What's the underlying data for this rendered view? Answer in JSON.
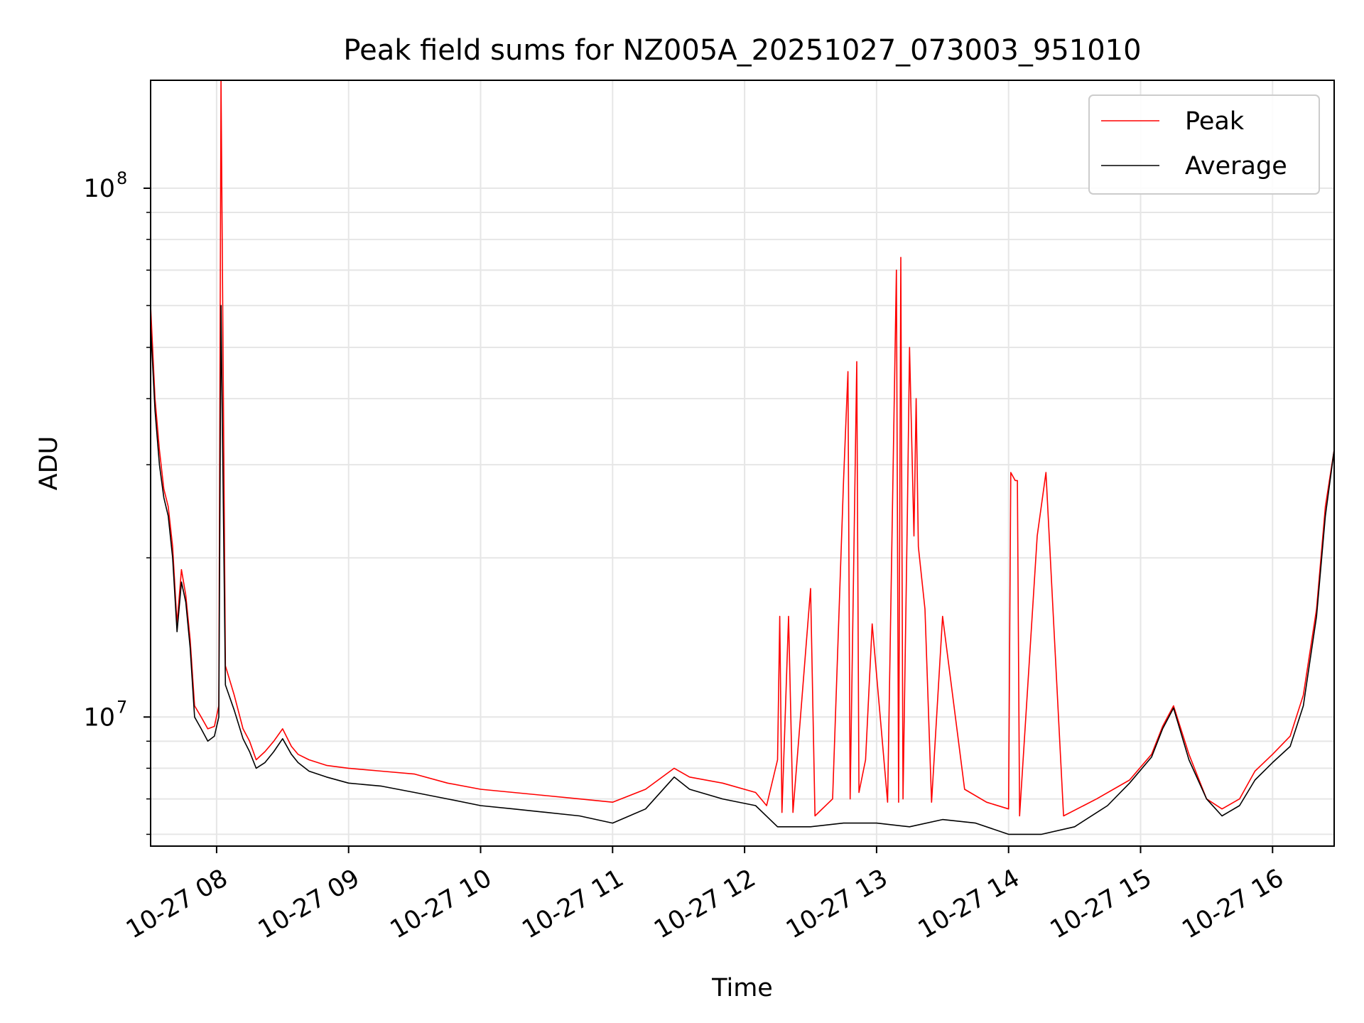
{
  "chart_data": {
    "type": "line",
    "title": "Peak field sums for NZ005A_20251027_073003_951010",
    "xlabel": "Time",
    "ylabel": "ADU",
    "yscale": "log",
    "ylim": [
      5700000,
      160000000
    ],
    "xlim": [
      "2025-10-27 07:30",
      "2025-10-27 16:28"
    ],
    "grid": true,
    "legend": {
      "placement": "top-right",
      "entries": [
        "Peak",
        "Average"
      ]
    },
    "x_ticks": [
      "10-27 08",
      "10-27 09",
      "10-27 10",
      "10-27 11",
      "10-27 12",
      "10-27 13",
      "10-27 14",
      "10-27 15",
      "10-27 16"
    ],
    "y_ticks": [
      {
        "value": 10000000,
        "base": "10",
        "exp": "7"
      },
      {
        "value": 100000000,
        "base": "10",
        "exp": "8"
      }
    ],
    "series": [
      {
        "name": "Peak",
        "color": "#ff0000",
        "x": [
          "2025-10-27 07:30",
          "2025-10-27 07:32",
          "2025-10-27 07:34",
          "2025-10-27 07:36",
          "2025-10-27 07:38",
          "2025-10-27 07:40",
          "2025-10-27 07:42",
          "2025-10-27 07:44",
          "2025-10-27 07:46",
          "2025-10-27 07:48",
          "2025-10-27 07:50",
          "2025-10-27 07:53",
          "2025-10-27 07:56",
          "2025-10-27 07:59",
          "2025-10-27 08:01",
          "2025-10-27 08:02",
          "2025-10-27 08:04",
          "2025-10-27 08:08",
          "2025-10-27 08:12",
          "2025-10-27 08:15",
          "2025-10-27 08:18",
          "2025-10-27 08:22",
          "2025-10-27 08:26",
          "2025-10-27 08:30",
          "2025-10-27 08:34",
          "2025-10-27 08:37",
          "2025-10-27 08:42",
          "2025-10-27 08:50",
          "2025-10-27 09:00",
          "2025-10-27 09:15",
          "2025-10-27 09:30",
          "2025-10-27 09:45",
          "2025-10-27 10:00",
          "2025-10-27 10:15",
          "2025-10-27 10:30",
          "2025-10-27 10:45",
          "2025-10-27 11:00",
          "2025-10-27 11:15",
          "2025-10-27 11:28",
          "2025-10-27 11:35",
          "2025-10-27 11:50",
          "2025-10-27 12:05",
          "2025-10-27 12:10",
          "2025-10-27 12:15",
          "2025-10-27 12:16",
          "2025-10-27 12:17",
          "2025-10-27 12:20",
          "2025-10-27 12:22",
          "2025-10-27 12:30",
          "2025-10-27 12:32",
          "2025-10-27 12:40",
          "2025-10-27 12:45",
          "2025-10-27 12:47",
          "2025-10-27 12:48",
          "2025-10-27 12:51",
          "2025-10-27 12:52",
          "2025-10-27 12:55",
          "2025-10-27 12:58",
          "2025-10-27 13:05",
          "2025-10-27 13:09",
          "2025-10-27 13:10",
          "2025-10-27 13:11",
          "2025-10-27 13:12",
          "2025-10-27 13:14",
          "2025-10-27 13:15",
          "2025-10-27 13:17",
          "2025-10-27 13:18",
          "2025-10-27 13:19",
          "2025-10-27 13:22",
          "2025-10-27 13:25",
          "2025-10-27 13:30",
          "2025-10-27 13:40",
          "2025-10-27 13:50",
          "2025-10-27 14:00",
          "2025-10-27 14:01",
          "2025-10-27 14:03",
          "2025-10-27 14:04",
          "2025-10-27 14:05",
          "2025-10-27 14:13",
          "2025-10-27 14:17",
          "2025-10-27 14:25",
          "2025-10-27 14:40",
          "2025-10-27 14:55",
          "2025-10-27 15:05",
          "2025-10-27 15:10",
          "2025-10-27 15:15",
          "2025-10-27 15:22",
          "2025-10-27 15:30",
          "2025-10-27 15:37",
          "2025-10-27 15:45",
          "2025-10-27 15:52",
          "2025-10-27 16:00",
          "2025-10-27 16:08",
          "2025-10-27 16:14",
          "2025-10-27 16:20",
          "2025-10-27 16:24",
          "2025-10-27 16:28"
        ],
        "y": [
          60000000,
          40000000,
          32000000,
          27000000,
          25000000,
          21000000,
          15000000,
          19000000,
          17000000,
          14000000,
          10500000,
          10000000,
          9500000,
          9600000,
          10500000,
          160000000,
          12500000,
          11000000,
          9500000,
          9000000,
          8300000,
          8600000,
          9000000,
          9500000,
          8800000,
          8500000,
          8300000,
          8100000,
          8000000,
          7900000,
          7800000,
          7500000,
          7300000,
          7200000,
          7100000,
          7000000,
          6900000,
          7300000,
          8000000,
          7700000,
          7500000,
          7200000,
          6800000,
          8300000,
          15500000,
          6600000,
          15500000,
          6600000,
          17500000,
          6500000,
          7000000,
          28000000,
          45000000,
          7000000,
          47000000,
          7200000,
          8300000,
          15000000,
          6900000,
          70000000,
          6900000,
          74000000,
          7000000,
          24000000,
          50000000,
          22000000,
          40000000,
          21000000,
          16000000,
          6900000,
          15500000,
          7300000,
          6900000,
          6700000,
          29000000,
          28000000,
          28000000,
          6500000,
          22000000,
          29000000,
          6500000,
          7000000,
          7600000,
          8500000,
          9600000,
          10500000,
          8500000,
          7000000,
          6700000,
          7000000,
          7900000,
          8500000,
          9200000,
          11000000,
          16000000,
          25000000,
          32000000
        ]
      },
      {
        "name": "Average",
        "color": "#000000",
        "x": [
          "2025-10-27 07:30",
          "2025-10-27 07:32",
          "2025-10-27 07:34",
          "2025-10-27 07:36",
          "2025-10-27 07:38",
          "2025-10-27 07:40",
          "2025-10-27 07:42",
          "2025-10-27 07:44",
          "2025-10-27 07:46",
          "2025-10-27 07:48",
          "2025-10-27 07:50",
          "2025-10-27 07:53",
          "2025-10-27 07:56",
          "2025-10-27 07:59",
          "2025-10-27 08:01",
          "2025-10-27 08:02",
          "2025-10-27 08:04",
          "2025-10-27 08:08",
          "2025-10-27 08:12",
          "2025-10-27 08:15",
          "2025-10-27 08:18",
          "2025-10-27 08:22",
          "2025-10-27 08:26",
          "2025-10-27 08:30",
          "2025-10-27 08:34",
          "2025-10-27 08:37",
          "2025-10-27 08:42",
          "2025-10-27 08:50",
          "2025-10-27 09:00",
          "2025-10-27 09:15",
          "2025-10-27 09:30",
          "2025-10-27 09:45",
          "2025-10-27 10:00",
          "2025-10-27 10:15",
          "2025-10-27 10:30",
          "2025-10-27 10:45",
          "2025-10-27 11:00",
          "2025-10-27 11:15",
          "2025-10-27 11:28",
          "2025-10-27 11:35",
          "2025-10-27 11:50",
          "2025-10-27 12:05",
          "2025-10-27 12:15",
          "2025-10-27 12:30",
          "2025-10-27 12:45",
          "2025-10-27 13:00",
          "2025-10-27 13:15",
          "2025-10-27 13:30",
          "2025-10-27 13:45",
          "2025-10-27 14:00",
          "2025-10-27 14:15",
          "2025-10-27 14:30",
          "2025-10-27 14:45",
          "2025-10-27 14:55",
          "2025-10-27 15:05",
          "2025-10-27 15:10",
          "2025-10-27 15:15",
          "2025-10-27 15:22",
          "2025-10-27 15:30",
          "2025-10-27 15:37",
          "2025-10-27 15:45",
          "2025-10-27 15:52",
          "2025-10-27 16:00",
          "2025-10-27 16:08",
          "2025-10-27 16:14",
          "2025-10-27 16:20",
          "2025-10-27 16:24",
          "2025-10-27 16:28"
        ],
        "y": [
          55000000,
          38000000,
          30000000,
          26000000,
          24000000,
          20000000,
          14500000,
          18000000,
          16500000,
          13500000,
          10000000,
          9500000,
          9000000,
          9200000,
          10000000,
          60000000,
          11500000,
          10300000,
          9100000,
          8600000,
          8000000,
          8200000,
          8600000,
          9100000,
          8500000,
          8200000,
          7900000,
          7700000,
          7500000,
          7400000,
          7200000,
          7000000,
          6800000,
          6700000,
          6600000,
          6500000,
          6300000,
          6700000,
          7700000,
          7300000,
          7000000,
          6800000,
          6200000,
          6200000,
          6300000,
          6300000,
          6200000,
          6400000,
          6300000,
          6000000,
          6000000,
          6200000,
          6800000,
          7500000,
          8400000,
          9500000,
          10400000,
          8300000,
          7000000,
          6500000,
          6800000,
          7600000,
          8200000,
          8800000,
          10500000,
          15500000,
          24000000,
          32000000
        ]
      }
    ]
  }
}
